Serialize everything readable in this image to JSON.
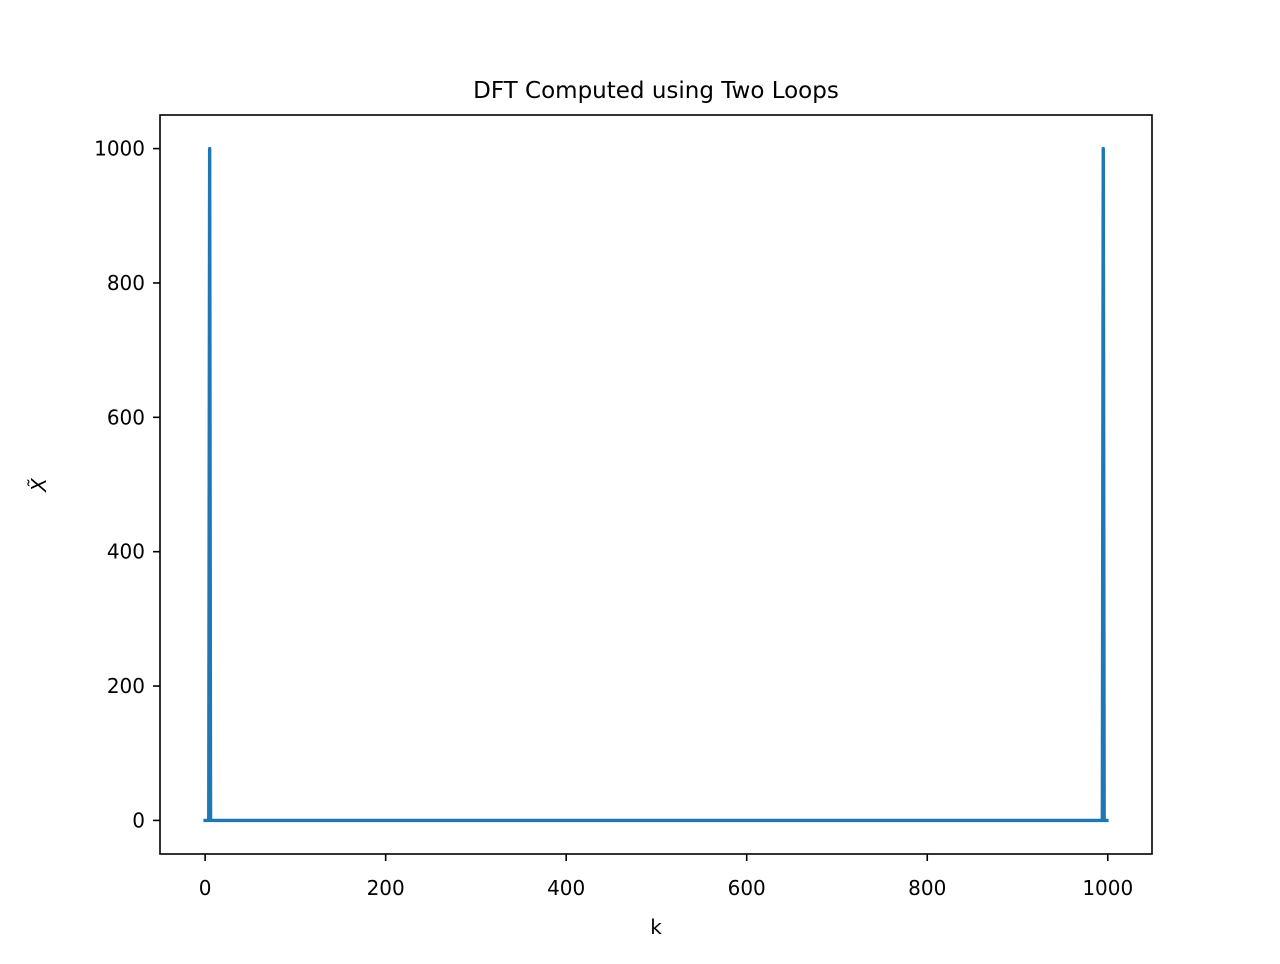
{
  "chart_data": {
    "type": "line",
    "title": "DFT Computed using Two Loops",
    "xlabel": "k",
    "ylabel": "X̃",
    "xlim": [
      -50,
      1049
    ],
    "ylim": [
      -50,
      1050
    ],
    "xticks": [
      0,
      200,
      400,
      600,
      800,
      1000
    ],
    "yticks": [
      0,
      200,
      400,
      600,
      800,
      1000
    ],
    "grid": false,
    "series": [
      {
        "color": "#1f77b4",
        "x": [
          0,
          4,
          5,
          6,
          994,
          995,
          996,
          999
        ],
        "y": [
          0,
          0,
          1000,
          0,
          0,
          1000,
          0,
          0
        ]
      }
    ]
  }
}
